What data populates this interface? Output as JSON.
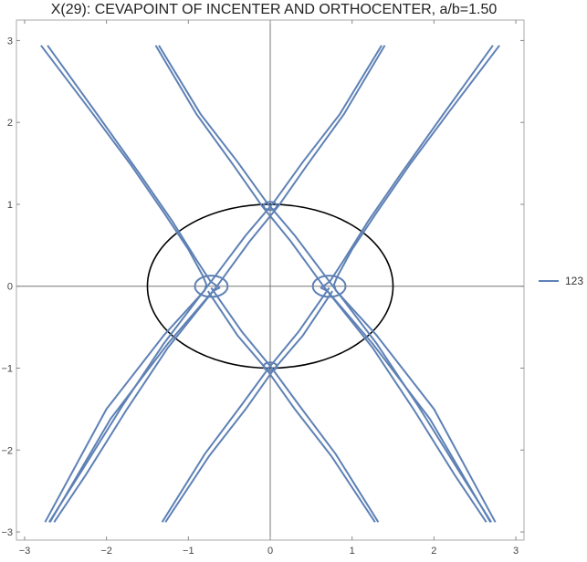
{
  "chart_data": {
    "type": "line",
    "title": "X(29): CEVAPOINT OF INCENTER AND ORTHOCENTER, a/b=1.50",
    "xlabel": "",
    "ylabel": "",
    "xlim": [
      -3.1,
      3.1
    ],
    "ylim": [
      -3.1,
      3.25
    ],
    "xticks": [
      -3,
      -2,
      -1,
      0,
      1,
      2,
      3
    ],
    "yticks": [
      -3,
      -2,
      -1,
      0,
      1,
      2,
      3
    ],
    "grid": false,
    "legend_position": "right",
    "ellipse": {
      "center": [
        0,
        0
      ],
      "semi_axis_x": 1.5,
      "semi_axis_y": 1.0,
      "color": "#000000"
    },
    "series": [
      {
        "name": "123",
        "color": "#5e81b5",
        "curves": [
          [
            [
              -2.8,
              2.94
            ],
            [
              -2.2,
              2.15
            ],
            [
              -1.7,
              1.48
            ],
            [
              -1.3,
              0.9
            ],
            [
              -1.0,
              0.45
            ],
            [
              -0.82,
              0.12
            ],
            [
              -0.78,
              0.02
            ],
            [
              -0.8,
              -0.05
            ],
            [
              -1.3,
              -0.6
            ],
            [
              -2.0,
              -1.5
            ],
            [
              -2.75,
              -2.88
            ]
          ],
          [
            [
              -2.72,
              2.94
            ],
            [
              -2.1,
              2.08
            ],
            [
              -1.6,
              1.38
            ],
            [
              -1.2,
              0.8
            ],
            [
              -0.9,
              0.32
            ],
            [
              -0.73,
              0.06
            ],
            [
              -0.62,
              -0.02
            ],
            [
              -0.7,
              -0.06
            ],
            [
              -1.25,
              -0.7
            ],
            [
              -1.95,
              -1.62
            ],
            [
              -2.69,
              -2.88
            ]
          ],
          [
            [
              -1.36,
              2.94
            ],
            [
              -0.85,
              2.1
            ],
            [
              -0.4,
              1.52
            ],
            [
              -0.04,
              1.02
            ],
            [
              0.3,
              0.62
            ],
            [
              0.72,
              0.06
            ],
            [
              1.3,
              -0.7
            ],
            [
              1.8,
              -1.45
            ],
            [
              2.3,
              -2.25
            ],
            [
              2.7,
              -2.88
            ]
          ],
          [
            [
              -1.4,
              2.94
            ],
            [
              -0.9,
              2.1
            ],
            [
              -0.45,
              1.48
            ],
            [
              -0.1,
              0.98
            ],
            [
              0.25,
              0.55
            ],
            [
              0.65,
              0.0
            ],
            [
              1.25,
              -0.75
            ],
            [
              1.75,
              -1.5
            ],
            [
              2.25,
              -2.3
            ],
            [
              2.64,
              -2.88
            ]
          ],
          [
            [
              2.8,
              2.94
            ],
            [
              2.2,
              2.15
            ],
            [
              1.7,
              1.48
            ],
            [
              1.3,
              0.9
            ],
            [
              1.0,
              0.45
            ],
            [
              0.82,
              0.12
            ],
            [
              0.78,
              0.02
            ],
            [
              0.8,
              -0.05
            ],
            [
              1.3,
              -0.6
            ],
            [
              2.0,
              -1.5
            ],
            [
              2.75,
              -2.88
            ]
          ],
          [
            [
              2.72,
              2.94
            ],
            [
              2.1,
              2.08
            ],
            [
              1.6,
              1.38
            ],
            [
              1.2,
              0.8
            ],
            [
              0.9,
              0.32
            ],
            [
              0.73,
              0.06
            ],
            [
              0.62,
              -0.02
            ],
            [
              0.7,
              -0.06
            ],
            [
              1.25,
              -0.7
            ],
            [
              1.95,
              -1.62
            ],
            [
              2.69,
              -2.88
            ]
          ],
          [
            [
              1.36,
              2.94
            ],
            [
              0.85,
              2.1
            ],
            [
              0.4,
              1.52
            ],
            [
              0.04,
              1.02
            ],
            [
              -0.3,
              0.62
            ],
            [
              -0.72,
              0.06
            ],
            [
              -1.3,
              -0.7
            ],
            [
              -1.8,
              -1.45
            ],
            [
              -2.3,
              -2.25
            ],
            [
              -2.7,
              -2.88
            ]
          ],
          [
            [
              1.4,
              2.94
            ],
            [
              0.9,
              2.1
            ],
            [
              0.45,
              1.48
            ],
            [
              0.1,
              0.98
            ],
            [
              -0.25,
              0.55
            ],
            [
              -0.65,
              0.0
            ],
            [
              -1.25,
              -0.75
            ],
            [
              -1.75,
              -1.5
            ],
            [
              -2.25,
              -2.3
            ],
            [
              -2.64,
              -2.88
            ]
          ],
          [
            [
              1.32,
              -2.88
            ],
            [
              0.8,
              -2.05
            ],
            [
              0.35,
              -1.45
            ],
            [
              0.02,
              -1.0
            ],
            [
              -0.35,
              -0.55
            ],
            [
              -0.72,
              -0.02
            ]
          ],
          [
            [
              1.28,
              -2.88
            ],
            [
              0.75,
              -2.08
            ],
            [
              0.3,
              -1.5
            ],
            [
              -0.04,
              -1.02
            ],
            [
              -0.4,
              -0.6
            ],
            [
              -0.76,
              -0.06
            ]
          ],
          [
            [
              -1.32,
              -2.88
            ],
            [
              -0.8,
              -2.05
            ],
            [
              -0.35,
              -1.45
            ],
            [
              -0.02,
              -1.0
            ],
            [
              0.35,
              -0.55
            ],
            [
              0.72,
              -0.02
            ]
          ],
          [
            [
              -1.28,
              -2.88
            ],
            [
              -0.75,
              -2.08
            ],
            [
              -0.3,
              -1.5
            ],
            [
              0.04,
              -1.02
            ],
            [
              0.4,
              -0.6
            ],
            [
              0.76,
              -0.06
            ]
          ]
        ],
        "loops": [
          {
            "center": [
              -0.72,
              0.0
            ],
            "rx": 0.2,
            "ry": 0.13
          },
          {
            "center": [
              0.72,
              0.0
            ],
            "rx": 0.2,
            "ry": 0.13
          },
          {
            "center": [
              0.0,
              0.98
            ],
            "rx": 0.08,
            "ry": 0.05
          },
          {
            "center": [
              0.0,
              -0.98
            ],
            "rx": 0.08,
            "ry": 0.05
          }
        ]
      }
    ]
  }
}
